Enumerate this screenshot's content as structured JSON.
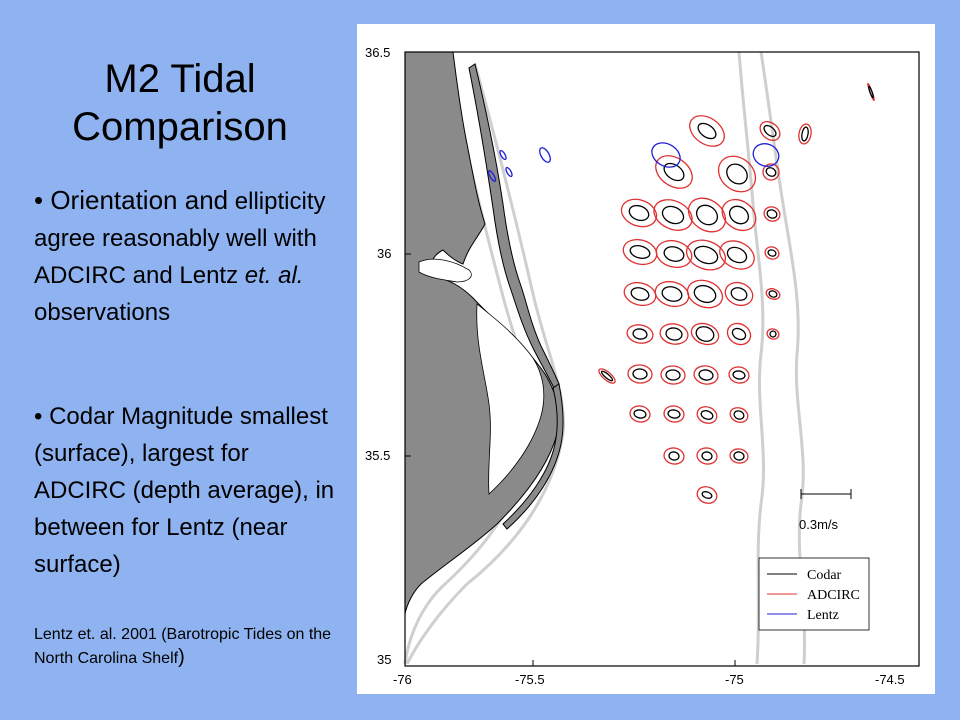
{
  "slide": {
    "title_line1": "M2 Tidal",
    "title_line2": "Comparison",
    "bullet1_start": "• Orientation and",
    "bullet1_rest": "ellipticity agree reasonably well with ADCIRC and Lentz",
    "bullet1_italic": "et. al.",
    "bullet1_end": " observations",
    "bullet2": "• Codar Magnitude smallest (surface), largest for ADCIRC (depth average), in between for Lentz (near surface)",
    "citation": "Lentz et. al. 2001 (Barotropic Tides on the North Carolina Shelf",
    "citation_close": ")"
  },
  "map": {
    "x_ticks": [
      "-76",
      "-75.5",
      "-75",
      "-74.5"
    ],
    "y_ticks": [
      "36.5",
      "36",
      "35.5",
      "35"
    ],
    "scale_label": "0.3m/s",
    "legend": [
      {
        "label": "Codar",
        "color": "#000000"
      },
      {
        "label": "ADCIRC",
        "color": "#e03030"
      },
      {
        "label": "Lentz",
        "color": "#1f1fd8"
      }
    ],
    "colors": {
      "land": "#8a8a8a",
      "isobath": "#cfcfcf"
    }
  }
}
